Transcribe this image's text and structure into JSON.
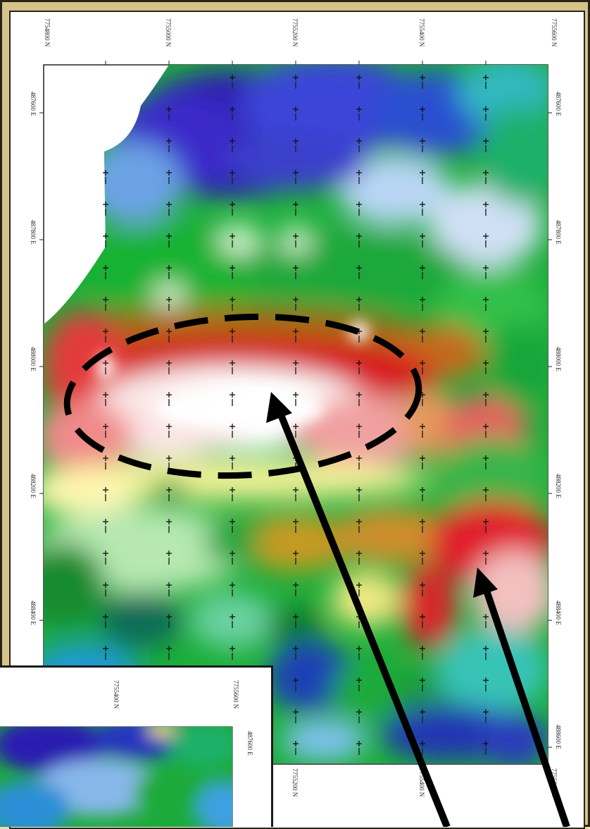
{
  "map": {
    "top_labels": [
      "7754800 N",
      "7755000 N",
      "7755200 N",
      "7755400 N",
      "7755600 N"
    ],
    "bottom_labels": [
      "7755200 N",
      "7755400 N",
      "7755600 N"
    ],
    "right_labels": [
      "487600 E",
      "487800 E",
      "488000 E",
      "488200 E",
      "488400 E",
      "488600 E"
    ],
    "left_labels": [
      "487600 E",
      "487800 E",
      "488000 E",
      "488200 E",
      "488400 E"
    ]
  },
  "inset": {
    "top_labels": [
      "7755400 N",
      "7755600 N"
    ],
    "right_labels": [
      "487600 E"
    ]
  },
  "colors": {
    "frame": "#d6c38a",
    "anomaly_high": "#e0151c",
    "anomaly_peak": "#ffffff",
    "mid": "#19b43a",
    "low": "#2a1fb8",
    "annotation": "#000000"
  }
}
